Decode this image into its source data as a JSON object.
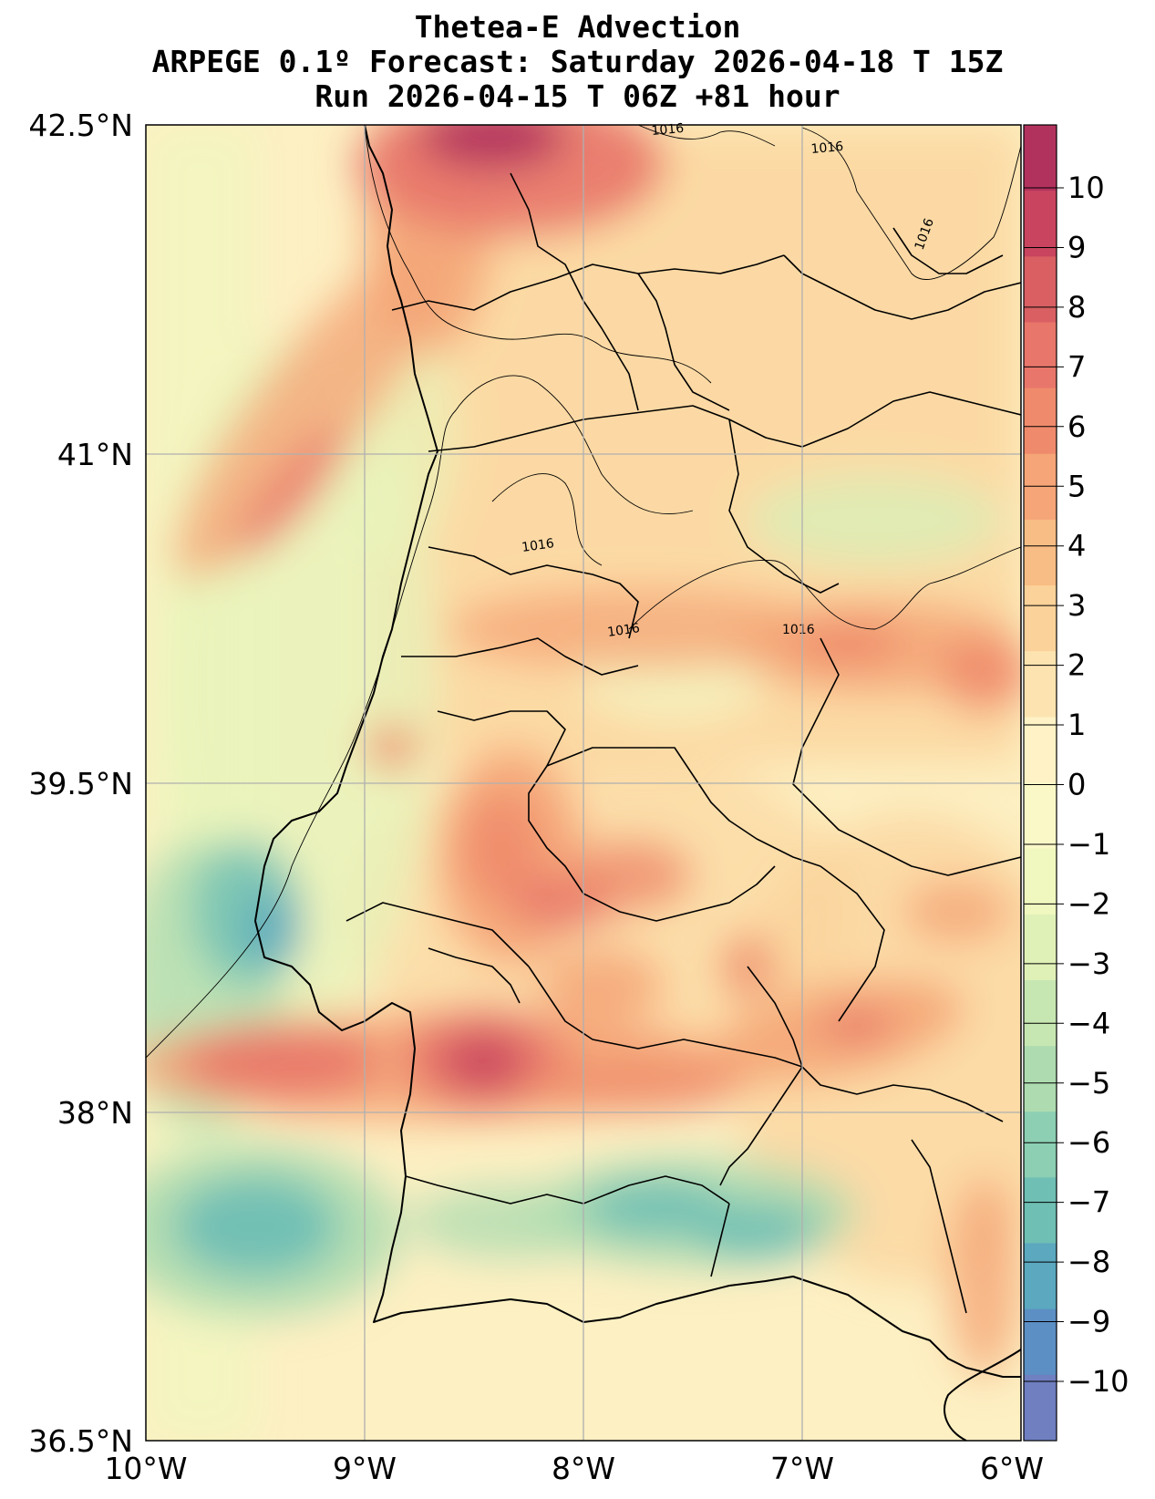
{
  "title": {
    "line1": "Thetea-E Advection",
    "line2": "ARPEGE 0.1º Forecast: Saturday 2026-04-18 T 15Z",
    "line3": "Run 2026-04-15 T 06Z +81 hour"
  },
  "axes": {
    "lat_labels": [
      "42.5°N",
      "41°N",
      "39.5°N",
      "38°N",
      "36.5°N"
    ],
    "lon_labels": [
      "10°W",
      "9°W",
      "8°W",
      "7°W",
      "6°W"
    ]
  },
  "colorbar": {
    "ticks": [
      "10",
      "9",
      "8",
      "7",
      "6",
      "5",
      "4",
      "3",
      "2",
      "1",
      "0",
      "−1",
      "−2",
      "−3",
      "−4",
      "−5",
      "−6",
      "−7",
      "−8",
      "−9",
      "−10"
    ],
    "colors": [
      "#b2325e",
      "#c9445e",
      "#d95f63",
      "#e8766a",
      "#ef8b6c",
      "#f5a577",
      "#f8bd84",
      "#fbd29a",
      "#fde3b0",
      "#fef2c6",
      "#fbf8c8",
      "#f0f7bf",
      "#e0f1b8",
      "#c7e7b2",
      "#aedcb0",
      "#8ccfb2",
      "#6fbfb4",
      "#5ba8bf",
      "#5c8fc4",
      "#6f7fc0"
    ]
  },
  "isobar_label": "1016",
  "map": {
    "lon_range": [
      -10,
      -6
    ],
    "lat_range": [
      36.5,
      42.5
    ],
    "field": "theta-e advection",
    "high_anomalies": [
      {
        "lon": -8.5,
        "lat": 38.2,
        "value": 9
      },
      {
        "lon": -8.4,
        "lat": 42.4,
        "value": 10
      },
      {
        "lon": -9.5,
        "lat": 38.2,
        "value": 6
      },
      {
        "lon": -8.6,
        "lat": 39.3,
        "value": 5
      },
      {
        "lon": -6.8,
        "lat": 38.4,
        "value": 7
      },
      {
        "lon": -9.2,
        "lat": 41.5,
        "value": 5
      }
    ],
    "low_anomalies": [
      {
        "lon": -9.6,
        "lat": 37.5,
        "value": -7
      },
      {
        "lon": -7.2,
        "lat": 37.5,
        "value": -7
      },
      {
        "lon": -9.4,
        "lat": 39.0,
        "value": -6
      }
    ]
  }
}
